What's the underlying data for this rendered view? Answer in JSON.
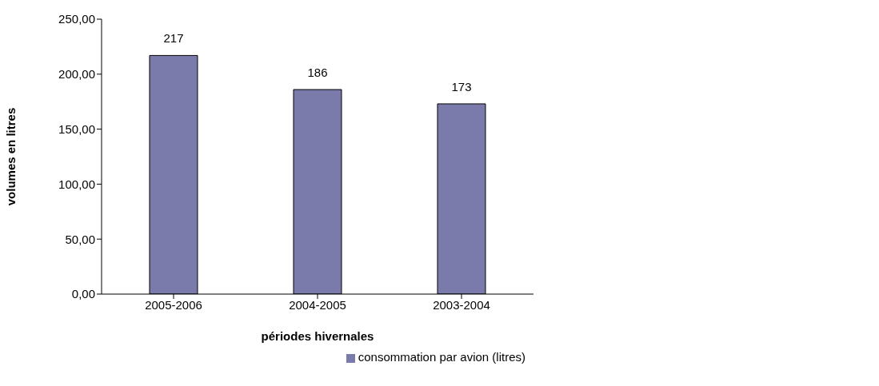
{
  "chart_data": {
    "type": "bar",
    "xlabel": "périodes hivernales",
    "ylabel": "volumes en litres",
    "categories": [
      "2005-2006",
      "2004-2005",
      "2003-2004"
    ],
    "series": [
      {
        "name": "consommation par avion (litres)",
        "color": "#7b7bab",
        "values": [
          217,
          186,
          173
        ]
      }
    ],
    "ylim": [
      0,
      250
    ],
    "yticks": [
      {
        "value": 0,
        "label": "0,00"
      },
      {
        "value": 50,
        "label": "50,00"
      },
      {
        "value": 100,
        "label": "100,00"
      },
      {
        "value": 150,
        "label": "150,00"
      },
      {
        "value": 200,
        "label": "200,00"
      },
      {
        "value": 250,
        "label": "250,00"
      }
    ],
    "data_labels": true,
    "legend": "bottom right"
  }
}
